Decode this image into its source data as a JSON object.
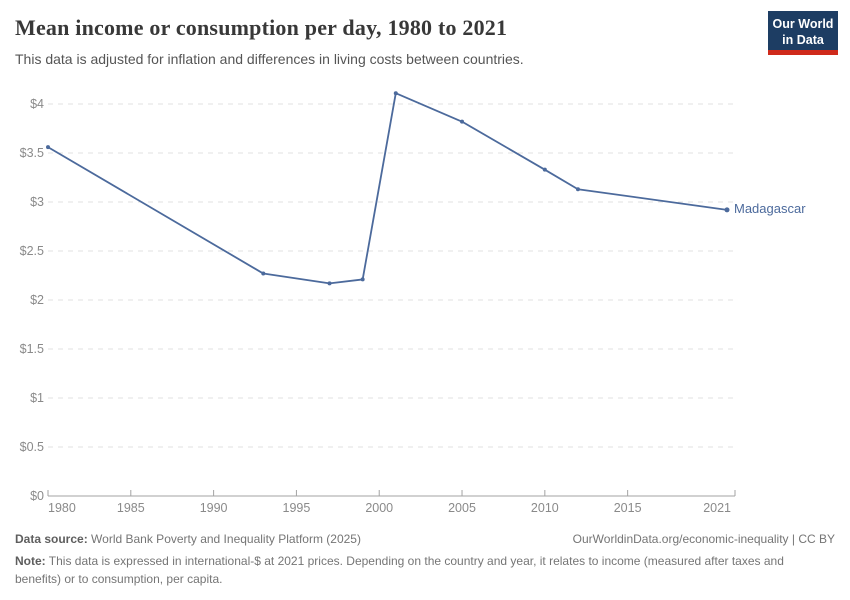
{
  "header": {
    "title": "Mean income or consumption per day, 1980 to 2021",
    "subtitle": "This data is adjusted for inflation and differences in living costs between countries."
  },
  "logo": {
    "line1": "Our World",
    "line2": "in Data",
    "bg_color": "#1d3d63",
    "bar_color": "#cf2a1b"
  },
  "chart_data": {
    "type": "line",
    "title": "Mean income or consumption per day, 1980 to 2021",
    "x": [
      1980,
      1993,
      1997,
      1999,
      2001,
      2005,
      2010,
      2012,
      2021
    ],
    "series": [
      {
        "name": "Madagascar",
        "color": "#4C6A9C",
        "values": [
          3.56,
          2.27,
          2.17,
          2.21,
          4.11,
          3.82,
          3.33,
          3.13,
          2.92
        ]
      }
    ],
    "xlabel": "",
    "ylabel": "",
    "xlim": [
      1980,
      2021
    ],
    "ylim": [
      0,
      4
    ],
    "x_ticks": [
      1980,
      1985,
      1990,
      1995,
      2000,
      2005,
      2010,
      2015,
      2021
    ],
    "x_tick_labels": [
      "1980",
      "1985",
      "1990",
      "1995",
      "2000",
      "2005",
      "2010",
      "2015",
      "2021"
    ],
    "y_ticks": [
      0,
      0.5,
      1,
      1.5,
      2,
      2.5,
      3,
      3.5,
      4
    ],
    "y_tick_labels": [
      "$0",
      "$0.5",
      "$1",
      "$1.5",
      "$2",
      "$2.5",
      "$3",
      "$3.5",
      "$4"
    ],
    "grid": "horizontal-dashed",
    "legend_position": "end-of-line-label",
    "colors": {
      "gridline": "#e0e0e0",
      "axis_line": "#a3a3a3",
      "tick_label": "#8a8a8a"
    }
  },
  "footer": {
    "source_label": "Data source:",
    "source_text": "World Bank Poverty and Inequality Platform (2025)",
    "attribution": "OurWorldinData.org/economic-inequality | CC BY",
    "note_label": "Note:",
    "note_text": "This data is expressed in international-$ at 2021 prices. Depending on the country and year, it relates to income (measured after taxes and benefits) or to consumption, per capita."
  }
}
